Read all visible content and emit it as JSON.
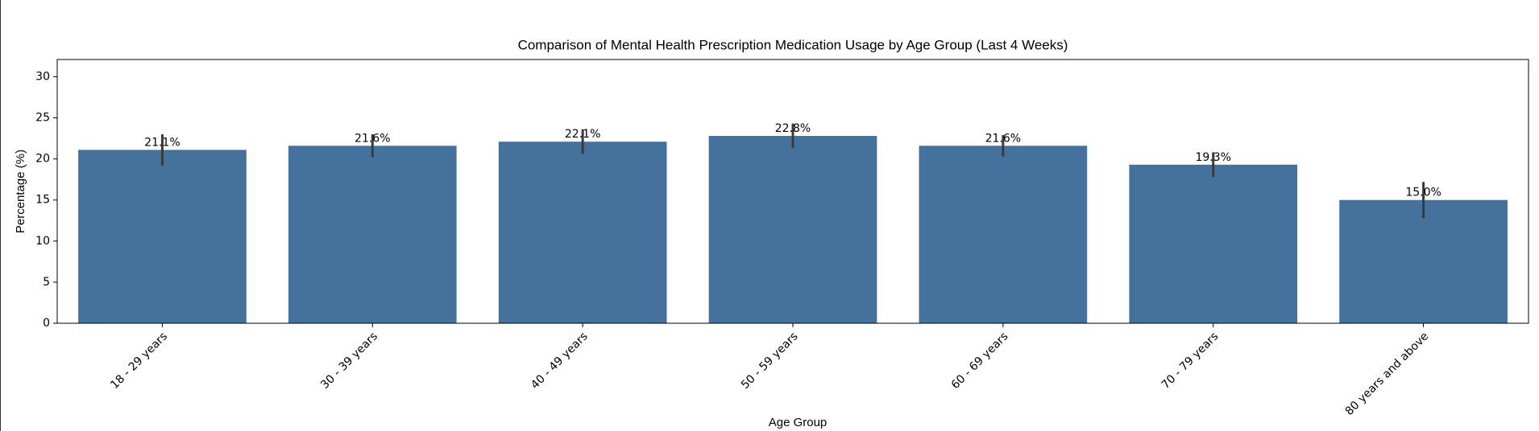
{
  "chart_data": {
    "type": "bar",
    "title": "Comparison of Mental Health Prescription Medication Usage by Age Group (Last 4 Weeks)",
    "x_label": "Age Group",
    "y_label": "Percentage (%)",
    "categories": [
      "18 - 29 years",
      "30 - 39 years",
      "40 - 49 years",
      "50 - 59 years",
      "60 - 69 years",
      "70 - 79 years",
      "80 years and above"
    ],
    "values": [
      21.1,
      21.6,
      22.1,
      22.8,
      21.6,
      19.3,
      15.0
    ],
    "value_labels": [
      "21.1%",
      "21.6%",
      "22.1%",
      "22.8%",
      "21.6%",
      "19.3%",
      "15.0%"
    ],
    "errors": [
      1.9,
      1.4,
      1.5,
      1.5,
      1.3,
      1.5,
      2.2
    ],
    "color": "#44729d",
    "error_color": "#3a3a3a",
    "ylim": [
      0,
      32.1
    ],
    "yticks": [
      0,
      5,
      10,
      15,
      20,
      25,
      30
    ],
    "grid": false
  }
}
